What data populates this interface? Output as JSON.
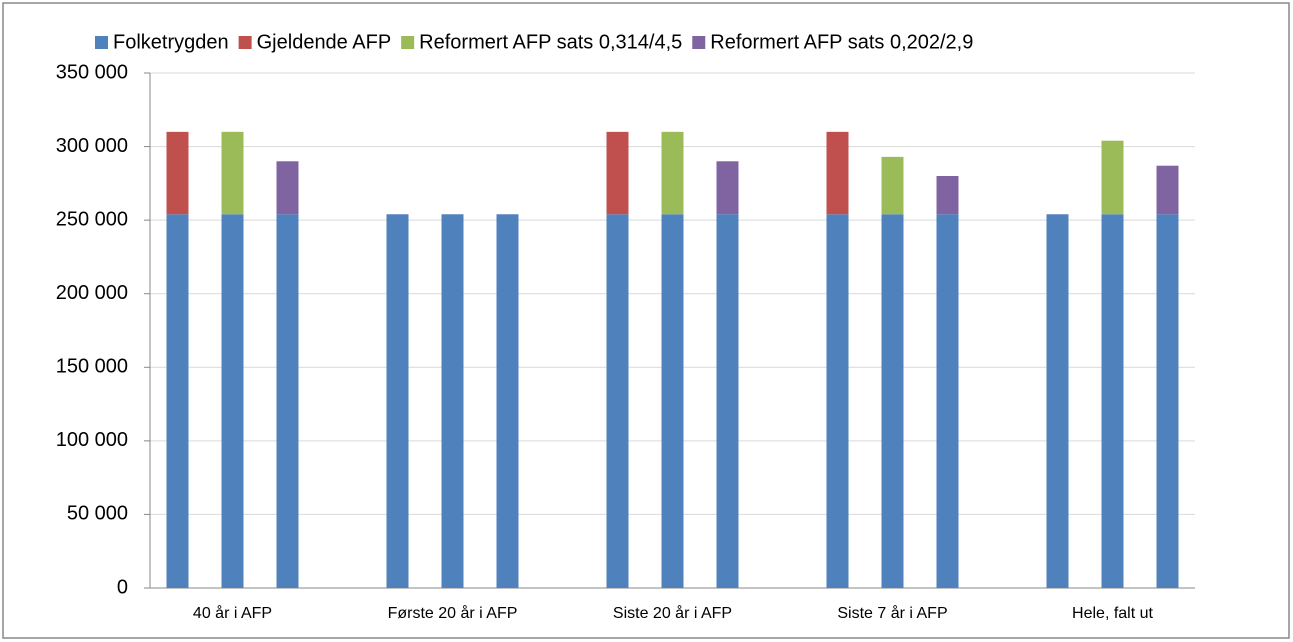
{
  "chart_data": {
    "type": "stacked_bar",
    "categories": [
      null,
      "40 år i AFP",
      null,
      null,
      null,
      "Første 20 år i AFP",
      null,
      null,
      null,
      "Siste 20 år i AFP",
      null,
      null,
      null,
      "Siste 7 år i AFP",
      null,
      null,
      null,
      "Hele, falt ut",
      null
    ],
    "series": [
      {
        "name": "Folketrygden",
        "color": "#4f81bd",
        "values": [
          254000,
          254000,
          254000,
          null,
          254000,
          254000,
          254000,
          null,
          254000,
          254000,
          254000,
          null,
          254000,
          254000,
          254000,
          null,
          254000,
          254000,
          254000
        ]
      },
      {
        "name": "Gjeldende AFP",
        "color": "#c0504d",
        "values": [
          56000,
          null,
          null,
          null,
          null,
          null,
          null,
          null,
          56000,
          null,
          null,
          null,
          56000,
          null,
          null,
          null,
          null,
          null,
          null
        ]
      },
      {
        "name": "Reformert AFP sats 0,314/4,5",
        "color": "#9bbb59",
        "values": [
          null,
          56000,
          null,
          null,
          null,
          null,
          null,
          null,
          null,
          56000,
          null,
          null,
          null,
          39000,
          null,
          null,
          null,
          50000,
          null
        ]
      },
      {
        "name": "Reformert AFP sats 0,202/2,9",
        "color": "#8064a2",
        "values": [
          null,
          null,
          36000,
          null,
          null,
          null,
          null,
          null,
          null,
          null,
          36000,
          null,
          null,
          null,
          26000,
          null,
          null,
          null,
          33000
        ]
      }
    ],
    "ylim": [
      0,
      350000
    ],
    "yticks": [
      0,
      {
        "value": 50000,
        "label": "50 000"
      },
      {
        "value": 100000,
        "label": "100 000"
      },
      {
        "value": 150000,
        "label": "150 000"
      },
      {
        "value": 200000,
        "label": "200 000"
      },
      {
        "value": 250000,
        "label": "250 000"
      },
      {
        "value": 300000,
        "label": "300 000"
      },
      {
        "value": 350000,
        "label": "350 000"
      }
    ],
    "grid": true,
    "legend": "top"
  }
}
